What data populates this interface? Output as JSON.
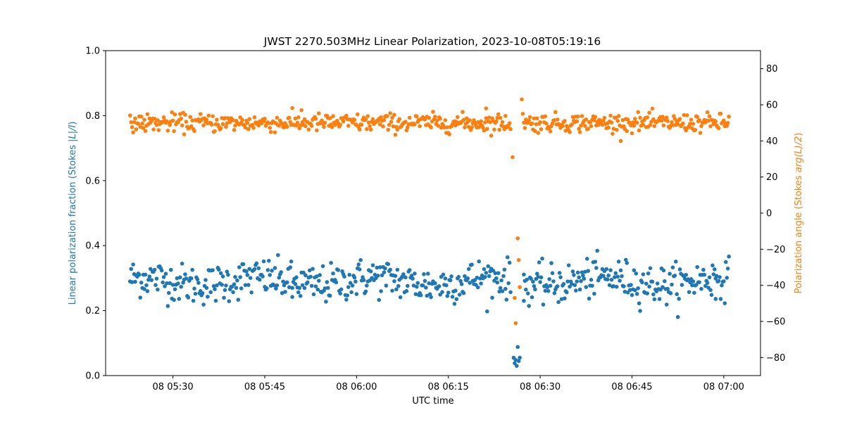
{
  "chart_data": {
    "type": "scatter",
    "title": "JWST 2270.503MHz Linear Polarization, 2023-10-08T05:19:16",
    "xlabel": "UTC time",
    "ylabel_left_prefix": "Linear polarization fraction (Stokes ",
    "ylabel_left_math": "|L|/I",
    "ylabel_left_suffix": ")",
    "ylabel_right_prefix": "Polarization angle (Stokes ",
    "ylabel_right_math": "arg(L)/2",
    "ylabel_right_suffix": ")",
    "x_range": [
      "2023-10-08T05:19:00",
      "2023-10-08T07:06:00"
    ],
    "x_ticks": [
      "08 05:30",
      "08 05:45",
      "08 06:00",
      "08 06:15",
      "08 06:30",
      "08 06:45",
      "08 07:00"
    ],
    "ylim_left": [
      0.0,
      1.0
    ],
    "y_ticks_left": [
      "0.0",
      "0.2",
      "0.4",
      "0.6",
      "0.8",
      "1.0"
    ],
    "ylim_right": [
      -90,
      90
    ],
    "y_ticks_right": [
      "−80",
      "−60",
      "−40",
      "−20",
      "0",
      "20",
      "40",
      "60",
      "80"
    ],
    "grid": false,
    "series": [
      {
        "axis": "left",
        "color": "#1f77b4",
        "start": "2023-10-08T05:23:00",
        "end": "2023-10-08T07:01:00",
        "typical_value": 0.29,
        "spread": 0.03,
        "outliers": [
          {
            "x": "2023-10-08T05:49:30",
            "y": 0.242
          },
          {
            "x": "2023-10-08T06:25:40",
            "y": 0.055
          },
          {
            "x": "2023-10-08T06:25:50",
            "y": 0.038
          },
          {
            "x": "2023-10-08T06:26:00",
            "y": 0.048
          },
          {
            "x": "2023-10-08T06:26:10",
            "y": 0.03
          },
          {
            "x": "2023-10-08T06:26:20",
            "y": 0.088
          },
          {
            "x": "2023-10-08T06:26:30",
            "y": 0.045
          },
          {
            "x": "2023-10-08T06:26:40",
            "y": 0.055
          },
          {
            "x": "2023-10-08T06:27:20",
            "y": 0.23
          },
          {
            "x": "2023-10-08T06:58:40",
            "y": 0.236
          }
        ]
      },
      {
        "axis": "right",
        "color": "#ff7f0e",
        "start": "2023-10-08T05:23:00",
        "end": "2023-10-08T07:01:00",
        "typical_value": 50,
        "spread": 2.5,
        "outliers": [
          {
            "x": "2023-10-08T06:25:30",
            "y": 31
          },
          {
            "x": "2023-10-08T06:25:50",
            "y": -47
          },
          {
            "x": "2023-10-08T06:26:00",
            "y": -61
          },
          {
            "x": "2023-10-08T06:26:20",
            "y": -14
          },
          {
            "x": "2023-10-08T06:26:30",
            "y": -26
          },
          {
            "x": "2023-10-08T06:26:40",
            "y": -41
          },
          {
            "x": "2023-10-08T06:27:00",
            "y": 63
          },
          {
            "x": "2023-10-08T06:27:10",
            "y": 55
          },
          {
            "x": "2023-10-08T05:51:00",
            "y": 57
          },
          {
            "x": "2023-10-08T06:21:10",
            "y": 58
          }
        ]
      }
    ]
  }
}
